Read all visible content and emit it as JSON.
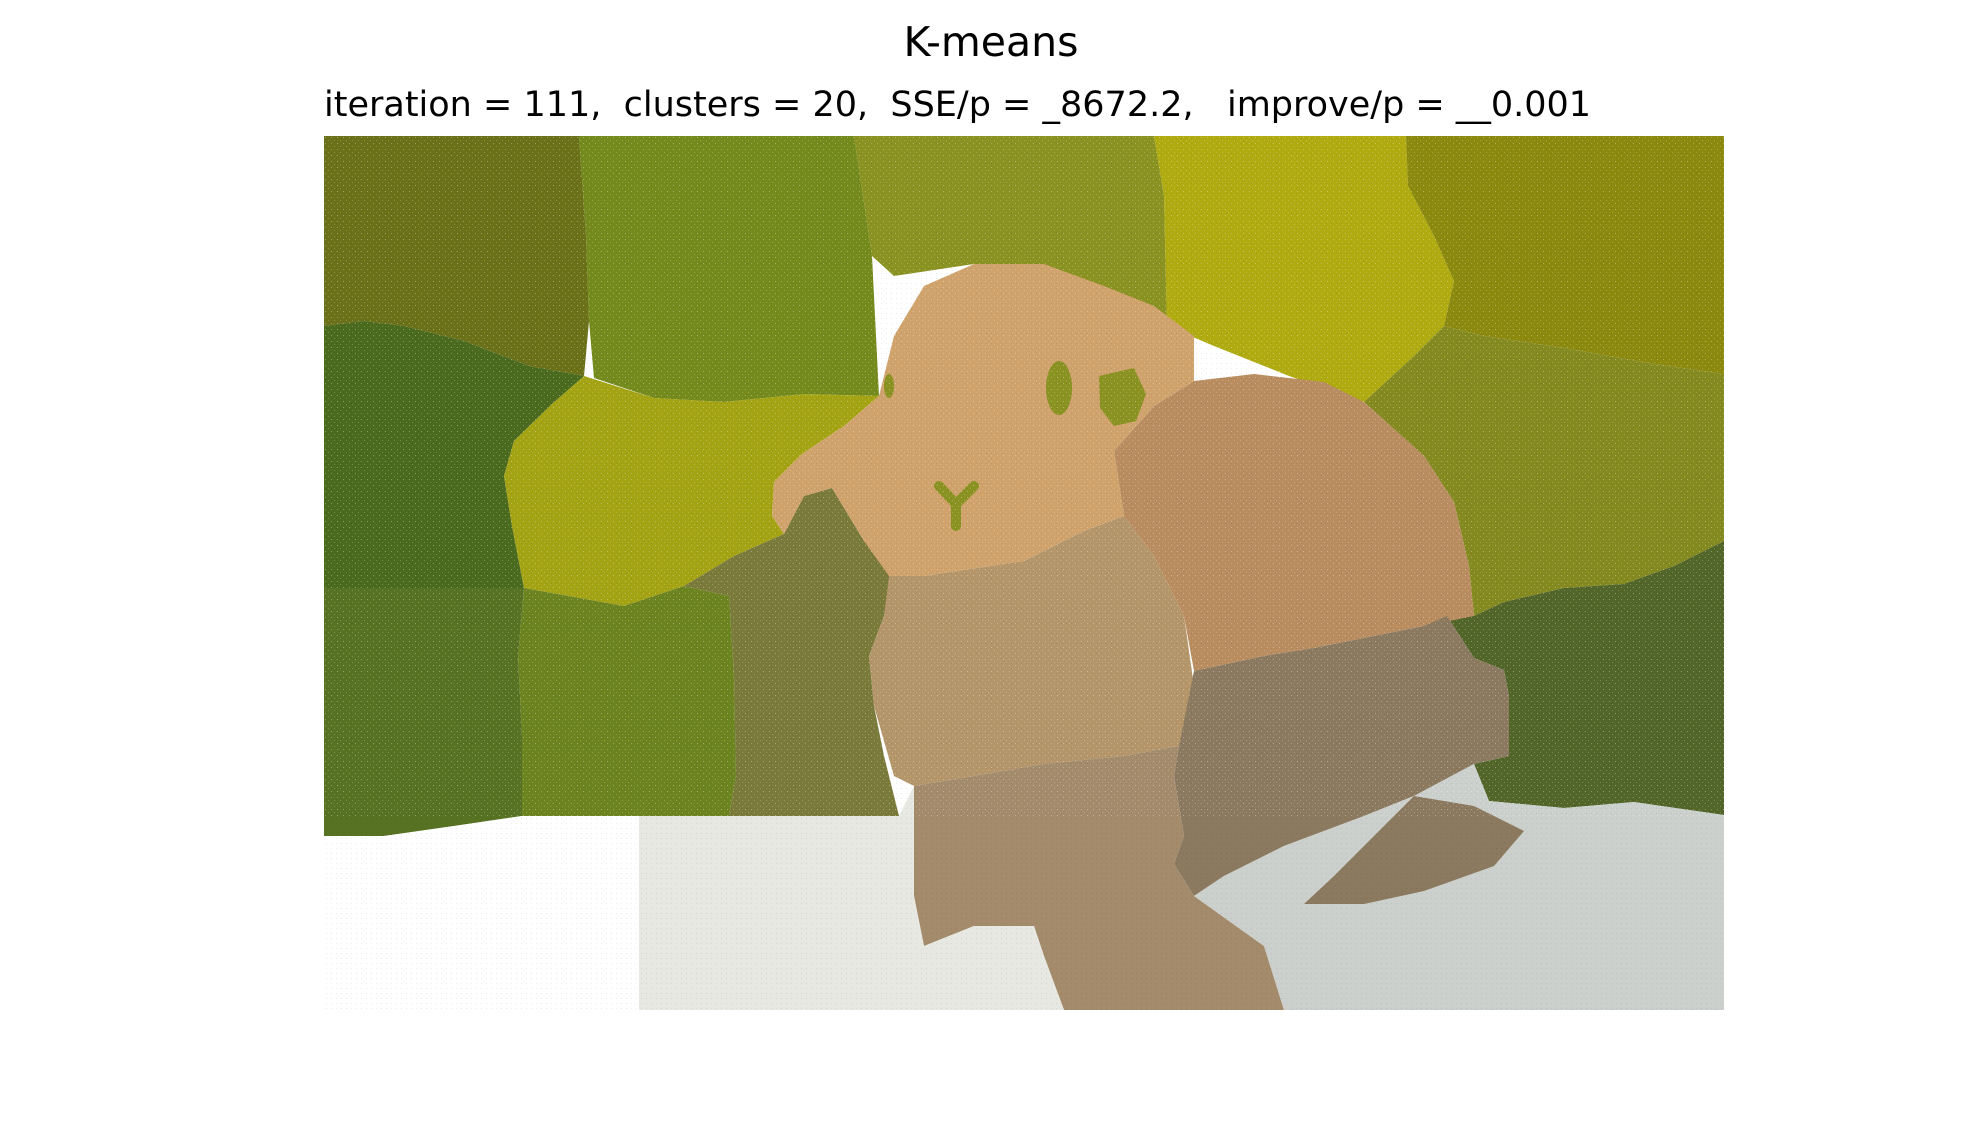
{
  "figure": {
    "title": "K-means",
    "subtitle": "iteration = 111,  clusters = 20,  SSE/p = _8672.2,   improve/p = __0.001"
  },
  "image": {
    "description_colors": {
      "c1": "#6b7118",
      "c2": "#748a1d",
      "c3": "#8a9222",
      "c4": "#b0ab10",
      "c5": "#8b8a0e",
      "c6": "#4a6a1e",
      "c7": "#a3a314",
      "c8": "#d0a36c",
      "c9": "#b98d60",
      "c10": "#848a20",
      "c11": "#567222",
      "c12": "#6c8420",
      "c13": "#7a7a3a",
      "c14": "#b4966a",
      "c15": "#52662a",
      "c16": "#8b7a60",
      "c17": "#ffffff",
      "c18": "#e8e8e2",
      "c19": "#a38b6c",
      "c20": "#ccd0cc"
    }
  }
}
